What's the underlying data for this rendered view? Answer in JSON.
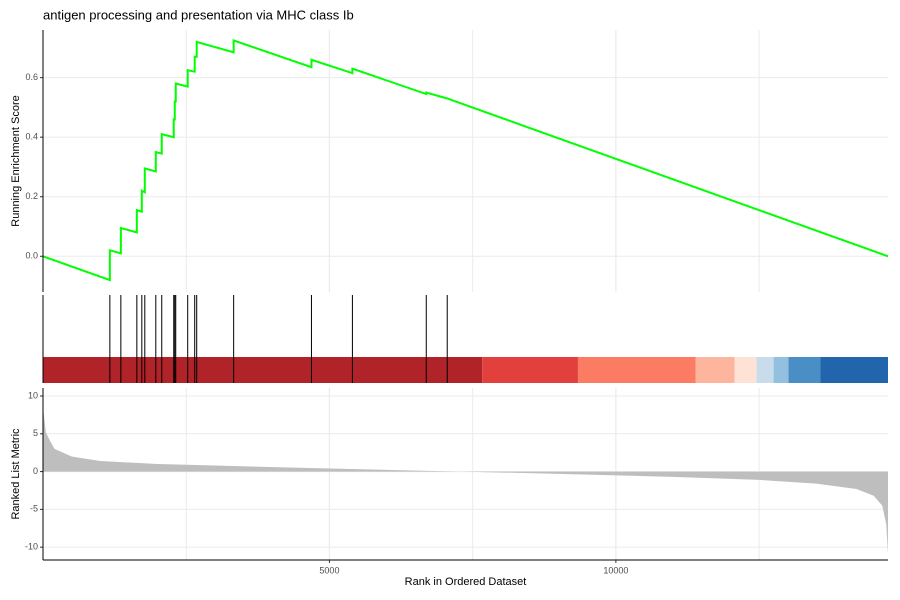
{
  "chart_data": {
    "type": "gsea",
    "title": "antigen processing and presentation via MHC class Ib",
    "xlabel": "Rank in Ordered Dataset",
    "xlim": [
      0,
      14750
    ],
    "xticks": [
      5000,
      10000
    ],
    "x_minor_ticks": [
      2500,
      7500,
      12500
    ],
    "grid": true,
    "running_score": {
      "ylabel": "Running Enrichment Score",
      "color": "#00ff00",
      "ylim": [
        -0.12,
        0.76
      ],
      "yticks": [
        {
          "value": 0,
          "label": "0.0"
        },
        0.2,
        0.4,
        0.6
      ],
      "x": [
        0,
        1167,
        1167,
        1359,
        1359,
        1638,
        1638,
        1725,
        1725,
        1777,
        1777,
        1969,
        1969,
        2073,
        2073,
        2282,
        2282,
        2300,
        2300,
        2317,
        2317,
        2526,
        2526,
        2648,
        2648,
        2683,
        2683,
        3328,
        3328,
        4686,
        4686,
        5401,
        5401,
        6690,
        6690,
        7056,
        14750
      ],
      "values": [
        0,
        -0.08,
        0.02,
        0.01,
        0.095,
        0.08,
        0.155,
        0.15,
        0.22,
        0.215,
        0.295,
        0.285,
        0.35,
        0.345,
        0.41,
        0.4,
        0.46,
        0.46,
        0.52,
        0.52,
        0.58,
        0.57,
        0.625,
        0.62,
        0.67,
        0.67,
        0.72,
        0.685,
        0.725,
        0.635,
        0.66,
        0.615,
        0.63,
        0.545,
        0.55,
        0.53,
        0
      ]
    },
    "hits": [
      1167,
      1359,
      1638,
      1725,
      1777,
      1969,
      2073,
      2282,
      2300,
      2317,
      2526,
      2648,
      2683,
      3328,
      4686,
      5401,
      6690,
      7056
    ],
    "color_band": {
      "breaks": [
        0,
        7666,
        9338,
        11394,
        12073,
        12456,
        12753,
        13014,
        13571,
        14750
      ],
      "colors": [
        "#b02329",
        "#e2403d",
        "#fb7b63",
        "#fdb59e",
        "#fee2d6",
        "#c8dcec",
        "#93c0de",
        "#4a8ec6",
        "#2166ac"
      ]
    },
    "ranked_metric": {
      "ylabel": "Ranked List Metric",
      "color": "#bebebe",
      "ylim": [
        -11.7,
        11.06
      ],
      "yticks": [
        10,
        5,
        0,
        -5,
        -10
      ],
      "x": [
        0,
        50,
        120,
        200,
        500,
        1000,
        2000,
        3000,
        5000,
        7000,
        9000,
        11000,
        12500,
        13500,
        14200,
        14500,
        14650,
        14720,
        14750
      ],
      "values": [
        8.5,
        5.2,
        4.1,
        3,
        2,
        1.4,
        1,
        0.8,
        0.4,
        0.05,
        -0.3,
        -0.7,
        -1.1,
        -1.6,
        -2.3,
        -3.2,
        -4.5,
        -7,
        -10.9
      ]
    }
  }
}
